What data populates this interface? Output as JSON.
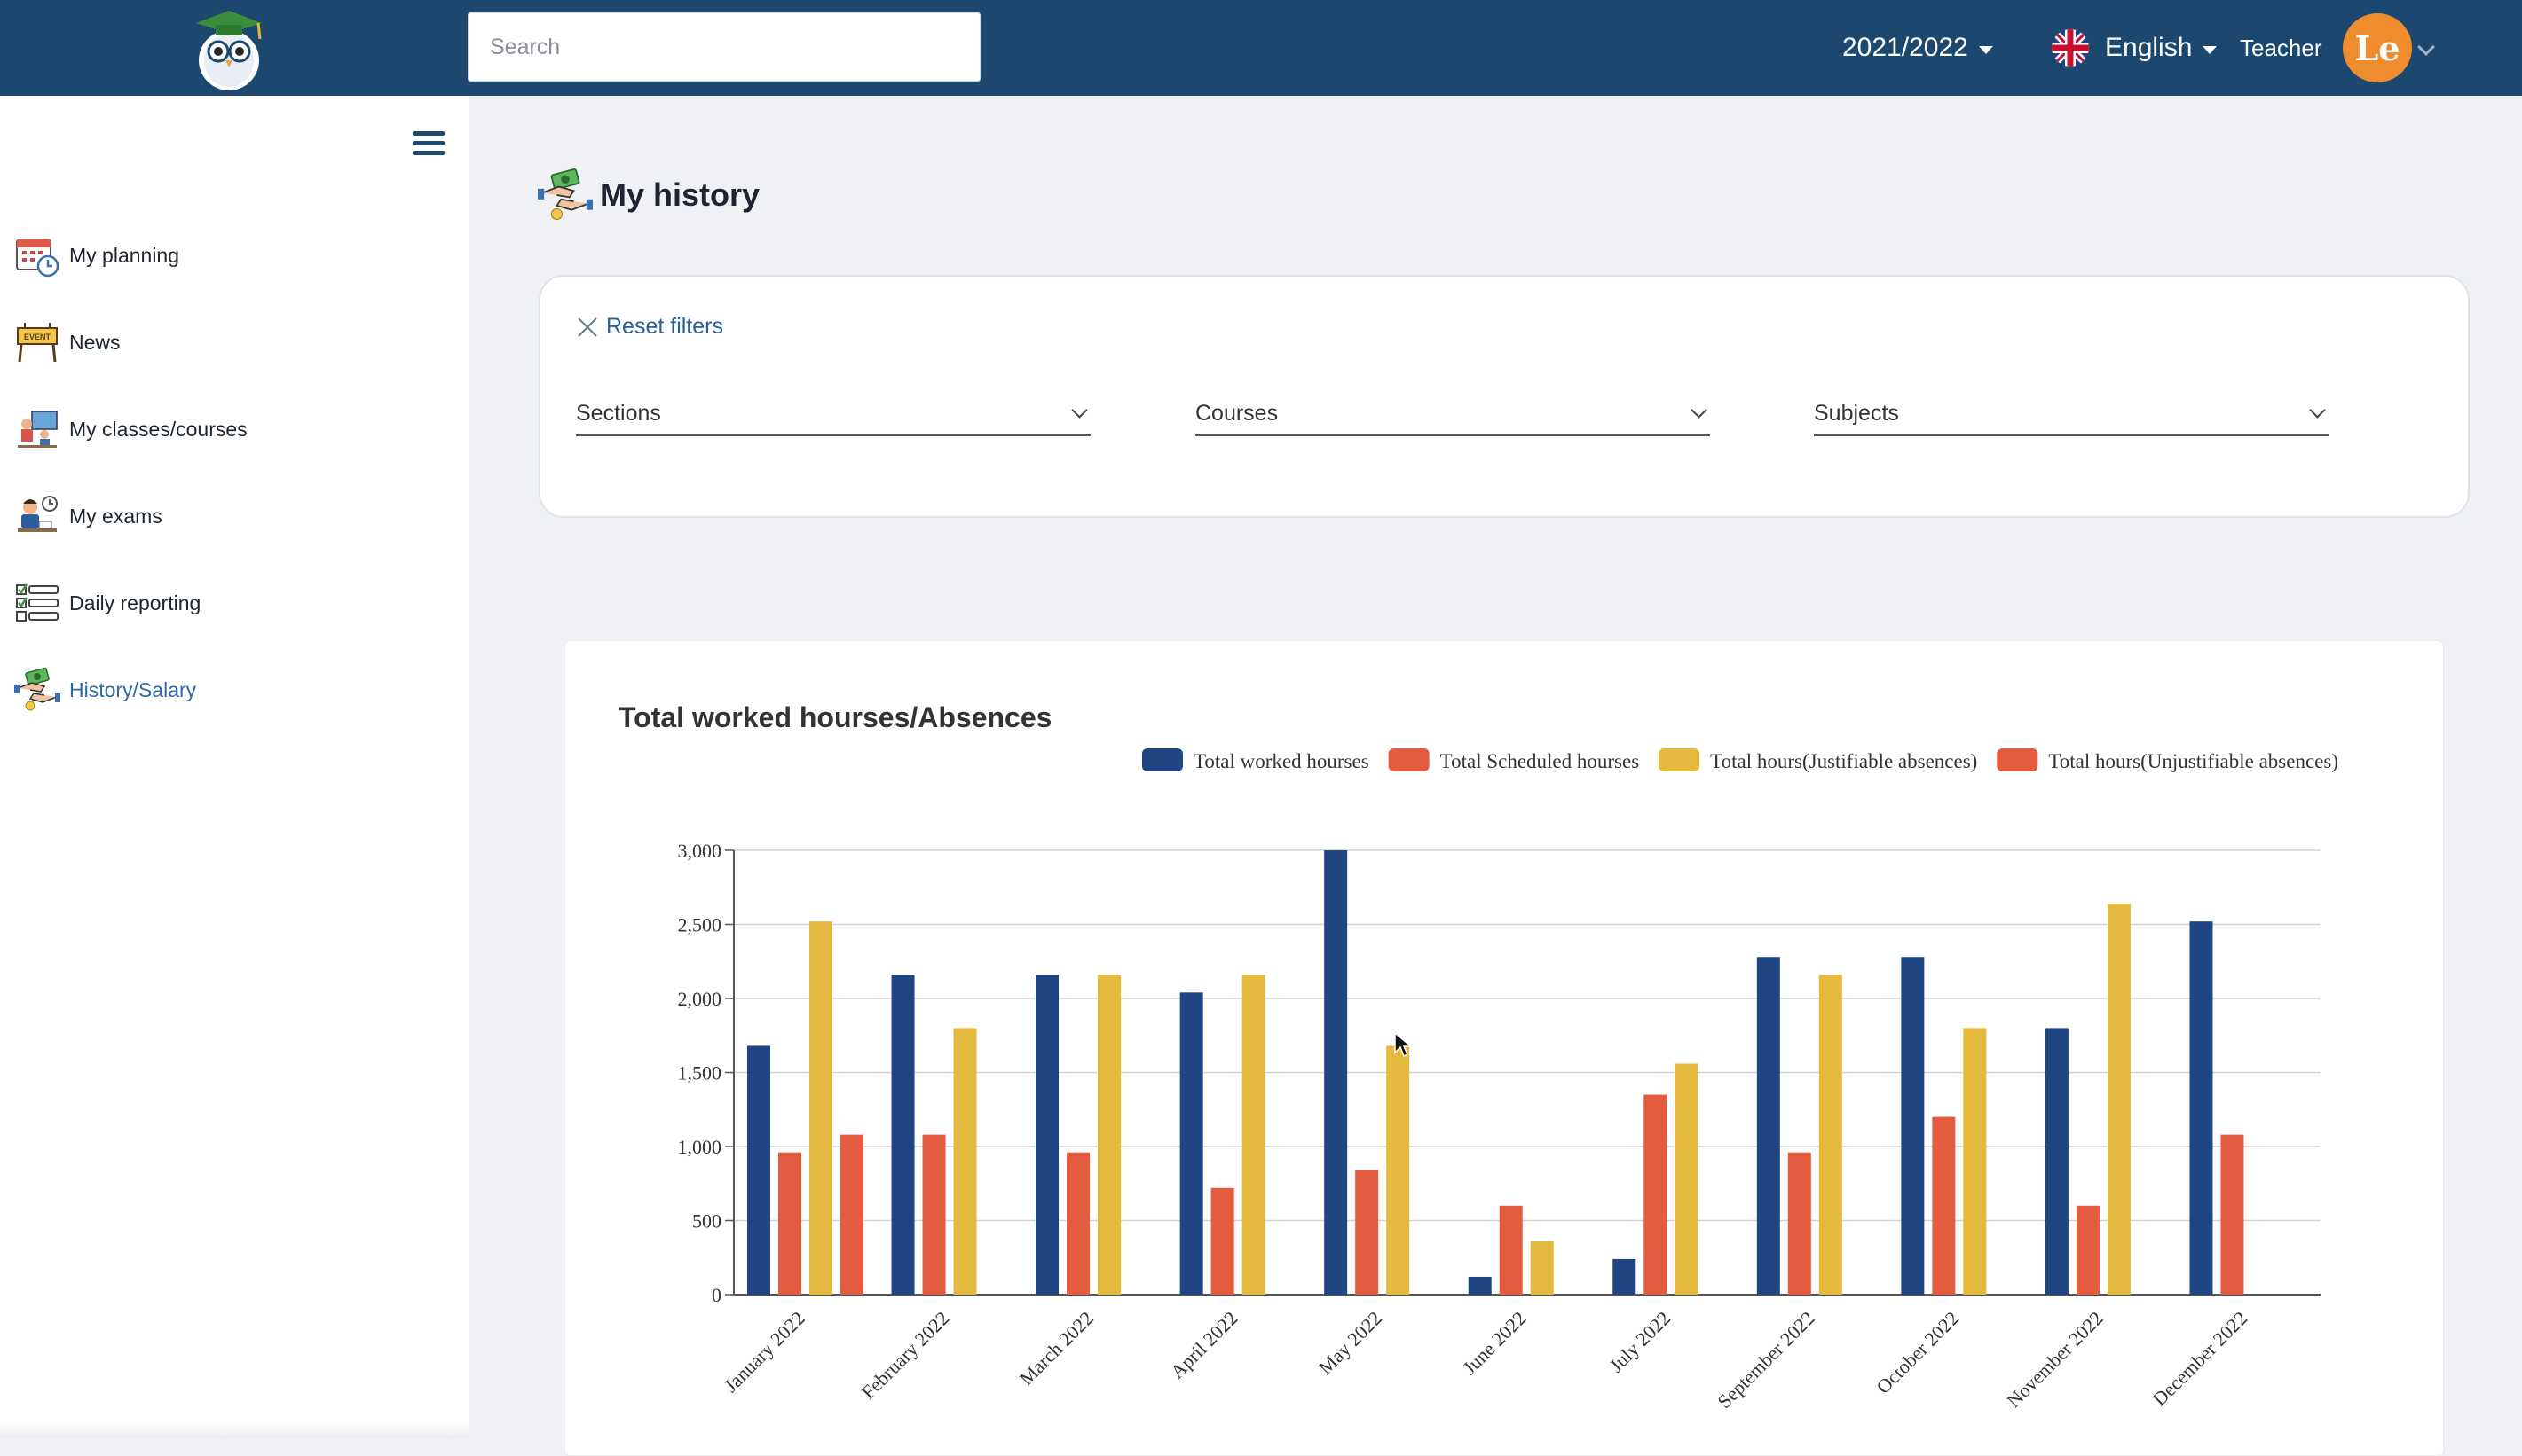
{
  "header": {
    "search_placeholder": "Search",
    "year": "2021/2022",
    "language": "English",
    "role": "Teacher",
    "avatar_initials": "Le"
  },
  "sidebar": {
    "items": [
      {
        "label": "My planning",
        "icon": "calendar-clock-icon"
      },
      {
        "label": "News",
        "icon": "event-sign-icon"
      },
      {
        "label": "My classes/courses",
        "icon": "classroom-icon"
      },
      {
        "label": "My exams",
        "icon": "exam-icon"
      },
      {
        "label": "Daily reporting",
        "icon": "checklist-icon"
      },
      {
        "label": "History/Salary",
        "icon": "salary-hands-icon",
        "active": true
      }
    ]
  },
  "main": {
    "title": "My history",
    "filters": {
      "reset_label": "Reset filters",
      "sections": "Sections",
      "courses": "Courses",
      "subjects": "Subjects"
    },
    "chart_card_title": "Total worked hourses/Absences"
  },
  "colors": {
    "navy": "#1c4870",
    "series_worked": "#1f4683",
    "series_scheduled": "#e45c40",
    "series_justifiable": "#e3b93e",
    "series_unjustifiable": "#e45c40",
    "active_link": "#2f6aa8"
  },
  "chart_data": {
    "type": "bar",
    "title": "Total worked hourses/Absences",
    "xlabel": "",
    "ylabel": "",
    "ylim": [
      0,
      3000
    ],
    "yticks": [
      "0",
      "500",
      "1,000",
      "1,500",
      "2,000",
      "2,500",
      "3,000"
    ],
    "legend_position": "top-right",
    "grid": true,
    "categories": [
      "January 2022",
      "February 2022",
      "March 2022",
      "April 2022",
      "May 2022",
      "June 2022",
      "July 2022",
      "September 2022",
      "October 2022",
      "November 2022",
      "December 2022"
    ],
    "series": [
      {
        "name": "Total worked hourses",
        "color": "#1f4683",
        "values": [
          1680,
          2160,
          2160,
          2040,
          3000,
          120,
          240,
          2280,
          2280,
          1800,
          2520
        ]
      },
      {
        "name": "Total Scheduled hourses",
        "color": "#e45c40",
        "values": [
          960,
          1080,
          960,
          720,
          840,
          600,
          1350,
          960,
          1200,
          600,
          1080
        ]
      },
      {
        "name": "Total hours(Justifiable absences)",
        "color": "#e3b93e",
        "values": [
          2520,
          1800,
          2160,
          2160,
          1680,
          360,
          1560,
          2160,
          1800,
          2640,
          0
        ]
      },
      {
        "name": "Total hours(Unjustifiable absences)",
        "color": "#e45c40",
        "values": [
          1080,
          0,
          0,
          0,
          0,
          0,
          0,
          0,
          0,
          0,
          0
        ]
      }
    ]
  }
}
